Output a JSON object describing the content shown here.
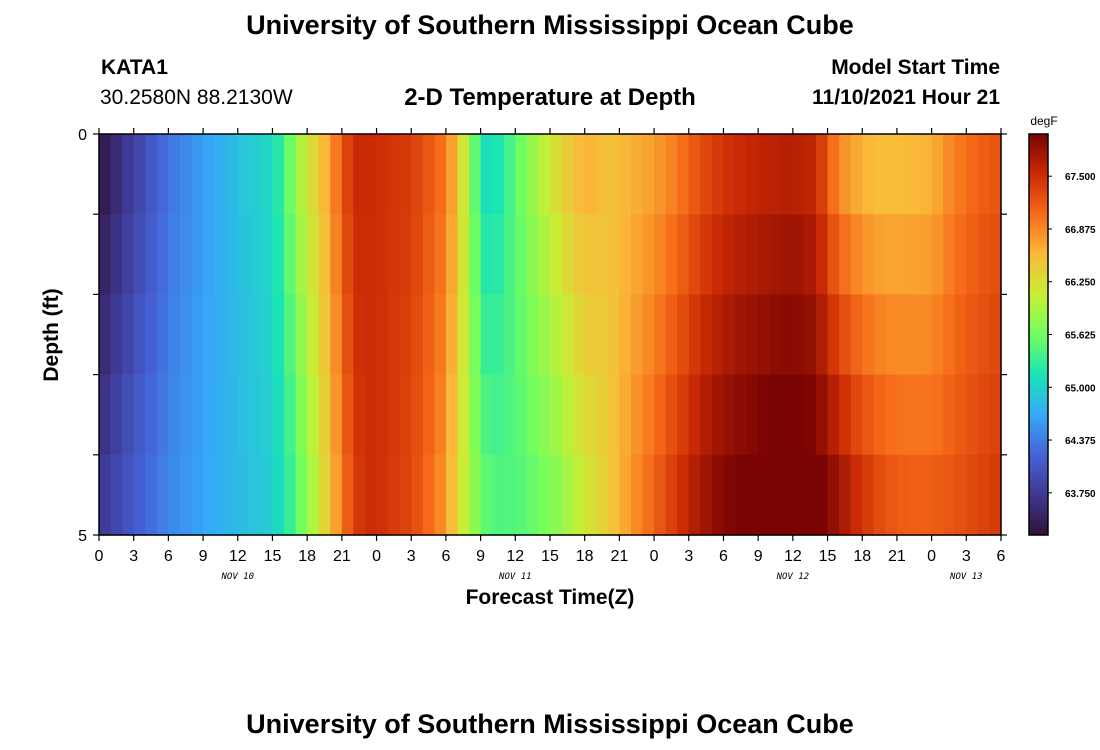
{
  "header": {
    "title": "University of Southern Mississippi Ocean Cube",
    "station_id": "KATA1",
    "location": "30.2580N  88.2130W",
    "plot_title": "2-D Temperature at Depth",
    "model_start_label": "Model Start Time",
    "model_start_value": "11/10/2021 Hour 21"
  },
  "footer": {
    "title": "University of Southern Mississippi Ocean Cube"
  },
  "chart_data": {
    "type": "heatmap",
    "xlabel": "Forecast Time(Z)",
    "ylabel": "Depth (ft)",
    "x_start_hour": 0,
    "x_end_hour": 78,
    "x_ticks": [
      {
        "hour": 0,
        "label": "0"
      },
      {
        "hour": 3,
        "label": "3"
      },
      {
        "hour": 6,
        "label": "6"
      },
      {
        "hour": 9,
        "label": "9"
      },
      {
        "hour": 12,
        "label": "12"
      },
      {
        "hour": 15,
        "label": "15"
      },
      {
        "hour": 18,
        "label": "18"
      },
      {
        "hour": 21,
        "label": "21"
      },
      {
        "hour": 24,
        "label": "0"
      },
      {
        "hour": 27,
        "label": "3"
      },
      {
        "hour": 30,
        "label": "6"
      },
      {
        "hour": 33,
        "label": "9"
      },
      {
        "hour": 36,
        "label": "12"
      },
      {
        "hour": 39,
        "label": "15"
      },
      {
        "hour": 42,
        "label": "18"
      },
      {
        "hour": 45,
        "label": "21"
      },
      {
        "hour": 48,
        "label": "0"
      },
      {
        "hour": 51,
        "label": "3"
      },
      {
        "hour": 54,
        "label": "6"
      },
      {
        "hour": 57,
        "label": "9"
      },
      {
        "hour": 60,
        "label": "12"
      },
      {
        "hour": 63,
        "label": "15"
      },
      {
        "hour": 66,
        "label": "18"
      },
      {
        "hour": 69,
        "label": "21"
      },
      {
        "hour": 72,
        "label": "0"
      },
      {
        "hour": 75,
        "label": "3"
      },
      {
        "hour": 78,
        "label": "6"
      }
    ],
    "day_labels": [
      {
        "hour": 12,
        "label": "NOV 10"
      },
      {
        "hour": 36,
        "label": "NOV 11"
      },
      {
        "hour": 60,
        "label": "NOV 12"
      },
      {
        "hour": 75,
        "label": "NOV 13"
      }
    ],
    "y_range": [
      0,
      5
    ],
    "y_tick_labels": [
      {
        "depth": 0,
        "label": "0"
      },
      {
        "depth": 5,
        "label": "5"
      }
    ],
    "y_minor_ticks": [
      1,
      2,
      3,
      4
    ],
    "depth_layers": 5,
    "colorbar": {
      "unit": "degF",
      "min": 63.25,
      "max": 68.0,
      "labels": [
        67.5,
        66.875,
        66.25,
        65.625,
        65.0,
        64.375,
        63.75
      ],
      "label_text": [
        "67.500",
        "66.875",
        "66.250",
        "65.625",
        "65.000",
        "64.375",
        "63.750"
      ],
      "colors": [
        "#30123b",
        "#3e3891",
        "#4662d7",
        "#36aaf9",
        "#1ae4b6",
        "#72fe5e",
        "#c8ef34",
        "#faba39",
        "#f66b19",
        "#cb2a04",
        "#7a0403"
      ]
    },
    "surface_profile": {
      "hours": [
        0,
        3,
        6,
        9,
        12,
        15,
        16,
        17,
        18,
        19,
        20,
        21,
        22,
        23,
        24,
        27,
        30,
        31,
        32,
        33,
        34,
        36,
        38,
        40,
        42,
        44,
        46,
        48,
        50,
        52,
        54,
        56,
        58,
        60,
        62,
        63,
        64,
        66,
        68,
        70,
        72,
        74,
        76,
        78
      ],
      "values": [
        63.25,
        63.8,
        64.3,
        64.6,
        64.85,
        65.1,
        65.4,
        65.85,
        66.2,
        66.45,
        66.8,
        67.2,
        67.55,
        67.55,
        67.5,
        67.4,
        67.0,
        66.5,
        65.9,
        65.1,
        65.0,
        65.5,
        66.0,
        66.4,
        66.7,
        66.5,
        66.6,
        66.7,
        66.9,
        67.2,
        67.4,
        67.5,
        67.55,
        67.6,
        67.5,
        67.1,
        66.75,
        66.5,
        66.45,
        66.5,
        66.55,
        66.9,
        67.1,
        67.2
      ]
    },
    "bottom_profile": {
      "hours": [
        0,
        3,
        6,
        9,
        12,
        15,
        16,
        17,
        18,
        19,
        20,
        21,
        22,
        23,
        24,
        27,
        28,
        30,
        31,
        32,
        33,
        34,
        36,
        38,
        40,
        42,
        44,
        46,
        48,
        50,
        52,
        54,
        56,
        58,
        60,
        62,
        64,
        66,
        68,
        70,
        72,
        74,
        76,
        78
      ],
      "values": [
        63.75,
        64.15,
        64.45,
        64.65,
        64.8,
        64.95,
        65.15,
        65.4,
        65.75,
        66.1,
        66.5,
        66.9,
        67.35,
        67.5,
        67.5,
        67.3,
        67.15,
        66.75,
        66.3,
        65.95,
        65.65,
        65.5,
        65.45,
        65.55,
        65.75,
        66.1,
        66.4,
        66.8,
        67.15,
        67.5,
        67.8,
        68.0,
        68.1,
        68.2,
        68.25,
        68.15,
        67.9,
        67.55,
        67.3,
        67.2,
        67.2,
        67.25,
        67.35,
        67.45
      ]
    }
  }
}
